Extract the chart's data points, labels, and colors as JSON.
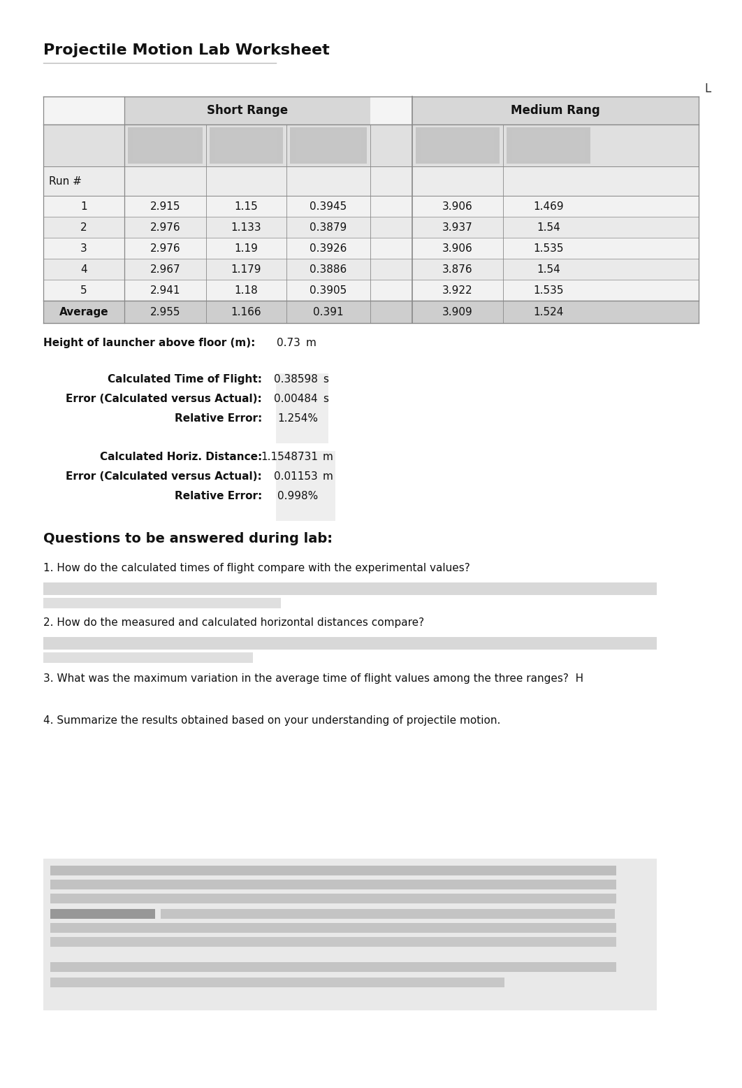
{
  "title": "Projectile Motion Lab Worksheet",
  "table_header_short": "Short Range",
  "table_header_medium": "Medium Rang",
  "col_label_L": "L",
  "run_label": "Run #",
  "rows": [
    {
      "run": "1",
      "sr1": "2.915",
      "sr2": "1.15",
      "sr3": "0.3945",
      "mr1": "3.906",
      "mr2": "1.469"
    },
    {
      "run": "2",
      "sr1": "2.976",
      "sr2": "1.133",
      "sr3": "0.3879",
      "mr1": "3.937",
      "mr2": "1.54"
    },
    {
      "run": "3",
      "sr1": "2.976",
      "sr2": "1.19",
      "sr3": "0.3926",
      "mr1": "3.906",
      "mr2": "1.535"
    },
    {
      "run": "4",
      "sr1": "2.967",
      "sr2": "1.179",
      "sr3": "0.3886",
      "mr1": "3.876",
      "mr2": "1.54"
    },
    {
      "run": "5",
      "sr1": "2.941",
      "sr2": "1.18",
      "sr3": "0.3905",
      "mr1": "3.922",
      "mr2": "1.535"
    }
  ],
  "avg_row": {
    "run": "Average",
    "sr1": "2.955",
    "sr2": "1.166",
    "sr3": "0.391",
    "mr1": "3.909",
    "mr2": "1.524"
  },
  "height_label": "Height of launcher above floor (m):",
  "height_value": "0.73",
  "height_unit": "m",
  "calc_tof_label": "Calculated Time of Flight:",
  "calc_tof_value": "0.38598",
  "calc_tof_unit": "s",
  "error_tof_label": "Error (Calculated versus Actual):",
  "error_tof_value": "0.00484",
  "error_tof_unit": "s",
  "rel_error_tof_label": "Relative Error:",
  "rel_error_tof_value": "1.254%",
  "calc_dist_label": "Calculated Horiz. Distance:",
  "calc_dist_value": "1.1548731",
  "calc_dist_unit": "m",
  "error_dist_label": "Error (Calculated versus Actual):",
  "error_dist_value": "0.01153",
  "error_dist_unit": "m",
  "rel_error_dist_label": "Relative Error:",
  "rel_error_dist_value": "0.998%",
  "questions_title": "Questions to be answered during lab:",
  "q1": "1. How do the calculated times of flight compare with the experimental values?",
  "q2": "2. How do the measured and calculated horizontal distances compare?",
  "q3": "3. What was the maximum variation in the average time of flight values among the three ranges?  H",
  "q4": "4. Summarize the results obtained based on your understanding of projectile motion.",
  "bg_color": "#ffffff"
}
